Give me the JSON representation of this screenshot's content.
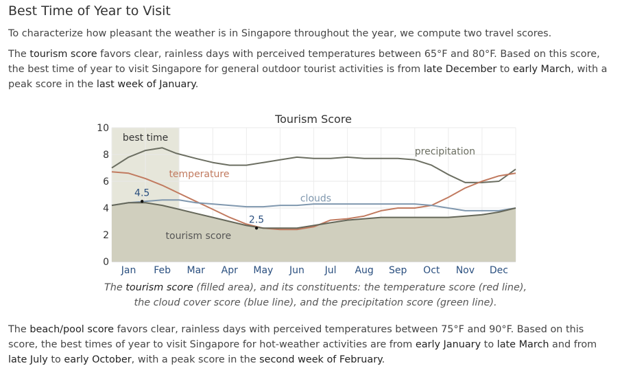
{
  "heading": "Best Time of Year to Visit",
  "intro": "To characterize how pleasant the weather is in Singapore throughout the year, we compute two travel scores.",
  "tourism_para": {
    "t1": "The ",
    "k1": "tourism score",
    "t2": " favors clear, rainless days with perceived temperatures between 65°F and 80°F. Based on this score, the best time of year to visit Singapore for general outdoor tourist activities is from ",
    "k2": "late December",
    "t3": " to ",
    "k3": "early March",
    "t4": ", with a peak score in the ",
    "k4": "last week of January",
    "t5": "."
  },
  "caption": {
    "t1": "The ",
    "k1": "tourism score",
    "t2": " (filled area), and its constituents: the temperature score (red line), the cloud cover score (blue line), and the precipitation score (green line)."
  },
  "beach_para": {
    "t1": "The ",
    "k1": "beach/pool score",
    "t2": " favors clear, rainless days with perceived temperatures between 75°F and 90°F. Based on this score, the best times of year to visit Singapore for hot-weather activities are from ",
    "k2": "early January",
    "t3": " to ",
    "k3": "late March",
    "t4": " and from ",
    "k4": "late July",
    "t5": " to ",
    "k5": "early October",
    "t6": ", with a peak score in the ",
    "k6": "second week of February",
    "t7": "."
  },
  "chart_data": {
    "type": "area",
    "title": "Tourism Score",
    "xlabel": "",
    "ylabel": "",
    "ylim": [
      0,
      10
    ],
    "yticks": [
      "0",
      "2",
      "4",
      "6",
      "8",
      "10"
    ],
    "months": [
      "Jan",
      "Feb",
      "Mar",
      "Apr",
      "May",
      "Jun",
      "Jul",
      "Aug",
      "Sep",
      "Oct",
      "Nov",
      "Dec"
    ],
    "x_unit": "month",
    "xlim": [
      0,
      12
    ],
    "best_time": {
      "label": "best time",
      "start": 0,
      "end": 2
    },
    "annotations": [
      {
        "text": "4.5",
        "x": 0.9,
        "y": 4.5
      },
      {
        "text": "2.5",
        "x": 4.3,
        "y": 2.5
      }
    ],
    "series": [
      {
        "name": "precipitation",
        "color": "#6b6e61",
        "x": [
          0,
          0.5,
          1.0,
          1.5,
          1.9,
          2.5,
          3.0,
          3.5,
          4.0,
          4.5,
          5.0,
          5.5,
          6.0,
          6.5,
          7.0,
          7.5,
          8.0,
          8.5,
          9.0,
          9.5,
          10.0,
          10.5,
          11.0,
          11.5,
          12.0
        ],
        "y": [
          7.0,
          7.8,
          8.3,
          8.5,
          8.1,
          7.7,
          7.4,
          7.2,
          7.2,
          7.4,
          7.6,
          7.8,
          7.7,
          7.7,
          7.8,
          7.7,
          7.7,
          7.7,
          7.6,
          7.2,
          6.5,
          5.9,
          5.9,
          6.0,
          6.9
        ]
      },
      {
        "name": "temperature",
        "color": "#c17a5f",
        "x": [
          0,
          0.5,
          1.0,
          1.5,
          2.0,
          2.5,
          3.0,
          3.5,
          4.0,
          4.5,
          5.0,
          5.5,
          6.0,
          6.5,
          7.0,
          7.5,
          8.0,
          8.5,
          9.0,
          9.5,
          10.0,
          10.5,
          11.0,
          11.5,
          12.0
        ],
        "y": [
          6.7,
          6.6,
          6.2,
          5.7,
          5.1,
          4.5,
          3.9,
          3.3,
          2.8,
          2.5,
          2.4,
          2.4,
          2.6,
          3.1,
          3.2,
          3.4,
          3.8,
          4.0,
          4.0,
          4.2,
          4.8,
          5.5,
          6.0,
          6.4,
          6.6
        ]
      },
      {
        "name": "clouds",
        "color": "#7f97ae",
        "x": [
          0,
          0.5,
          1.0,
          1.5,
          2.0,
          2.5,
          3.0,
          3.5,
          4.0,
          4.5,
          5.0,
          5.5,
          6.0,
          6.5,
          7.0,
          7.5,
          8.0,
          8.5,
          9.0,
          9.5,
          10.0,
          10.5,
          11.0,
          11.5,
          12.0
        ],
        "y": [
          4.2,
          4.4,
          4.5,
          4.6,
          4.6,
          4.4,
          4.3,
          4.2,
          4.1,
          4.1,
          4.2,
          4.2,
          4.3,
          4.3,
          4.3,
          4.3,
          4.3,
          4.3,
          4.3,
          4.2,
          4.0,
          3.8,
          3.8,
          3.8,
          4.0
        ]
      },
      {
        "name": "tourism score",
        "color": "#656759",
        "fill": "#d0cfbe",
        "x": [
          0,
          0.5,
          1.0,
          1.5,
          2.0,
          2.5,
          3.0,
          3.5,
          4.0,
          4.5,
          5.0,
          5.5,
          6.0,
          6.5,
          7.0,
          7.5,
          8.0,
          8.5,
          9.0,
          9.5,
          10.0,
          10.5,
          11.0,
          11.5,
          12.0
        ],
        "y": [
          4.2,
          4.4,
          4.4,
          4.2,
          3.9,
          3.6,
          3.3,
          3.0,
          2.7,
          2.5,
          2.5,
          2.5,
          2.7,
          2.9,
          3.1,
          3.2,
          3.3,
          3.3,
          3.3,
          3.3,
          3.3,
          3.4,
          3.5,
          3.7,
          4.0
        ]
      }
    ],
    "series_labels": [
      {
        "text": "precipitation",
        "x": 9.0,
        "y": 8.0
      },
      {
        "text": "temperature",
        "x": 1.7,
        "y": 6.3
      },
      {
        "text": "clouds",
        "x": 5.6,
        "y": 4.5
      },
      {
        "text": "tourism score",
        "x": 1.6,
        "y": 1.7
      }
    ]
  }
}
